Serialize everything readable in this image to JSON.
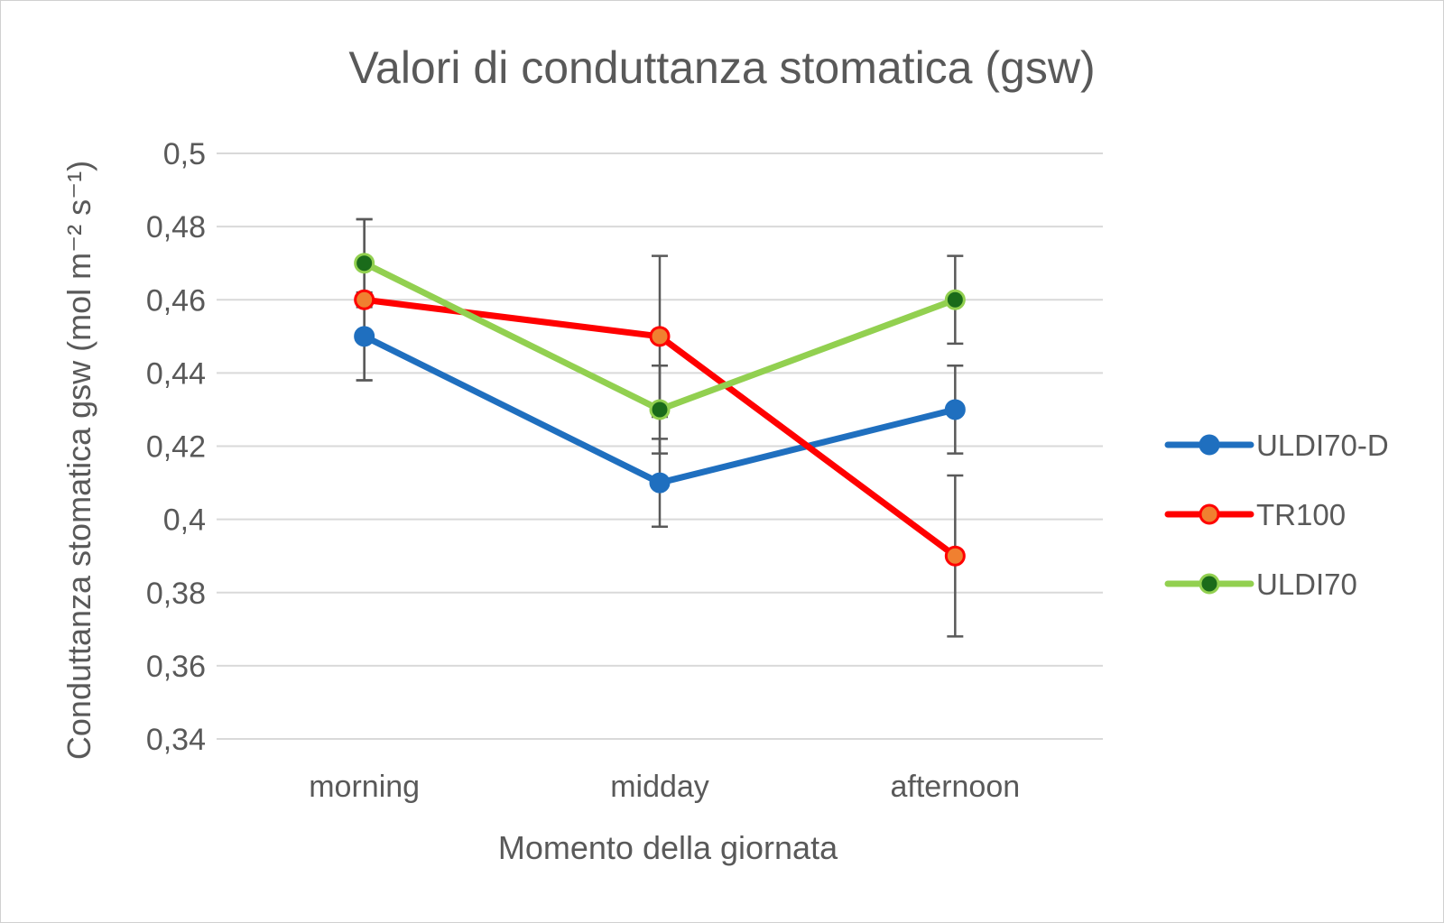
{
  "chart_data": {
    "type": "line",
    "title": "Valori di conduttanza stomatica (gsw)",
    "xlabel": "Momento della giornata",
    "ylabel": "Conduttanza stomatica gsw (mol m⁻² s⁻¹)",
    "categories": [
      "morning",
      "midday",
      "afternoon"
    ],
    "ylim": [
      0.34,
      0.5
    ],
    "ytick_values": [
      0.34,
      0.36,
      0.38,
      0.4,
      0.42,
      0.44,
      0.46,
      0.48,
      0.5
    ],
    "ytick_labels": [
      "0,34",
      "0,36",
      "0,38",
      "0,4",
      "0,42",
      "0,44",
      "0,46",
      "0,48",
      "0,5"
    ],
    "grid": true,
    "legend_position": "right",
    "series": [
      {
        "name": "ULDI70-D",
        "values": [
          0.45,
          0.41,
          0.43
        ],
        "error": [
          0.012,
          0.012,
          0.012
        ],
        "line_color": "#1f6fbf",
        "marker_fill": "#1f6fbf",
        "marker_stroke": "#1f6fbf"
      },
      {
        "name": "TR100",
        "values": [
          0.46,
          0.45,
          0.39
        ],
        "error": [
          0.022,
          0.022,
          0.022
        ],
        "line_color": "#ff0000",
        "marker_fill": "#f08030",
        "marker_stroke": "#ff0000"
      },
      {
        "name": "ULDI70",
        "values": [
          0.47,
          0.43,
          0.46
        ],
        "error": [
          0.012,
          0.012,
          0.012
        ],
        "line_color": "#92d050",
        "marker_fill": "#1a6b1a",
        "marker_stroke": "#92d050"
      }
    ]
  }
}
